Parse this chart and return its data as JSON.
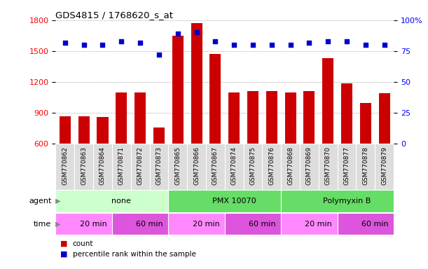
{
  "title": "GDS4815 / 1768620_s_at",
  "samples": [
    "GSM770862",
    "GSM770863",
    "GSM770864",
    "GSM770871",
    "GSM770872",
    "GSM770873",
    "GSM770865",
    "GSM770866",
    "GSM770867",
    "GSM770874",
    "GSM770875",
    "GSM770876",
    "GSM770868",
    "GSM770869",
    "GSM770870",
    "GSM770877",
    "GSM770878",
    "GSM770879"
  ],
  "counts": [
    870,
    870,
    860,
    1100,
    1100,
    760,
    1650,
    1770,
    1470,
    1100,
    1110,
    1110,
    1100,
    1110,
    1430,
    1185,
    1000,
    1090
  ],
  "percentiles": [
    82,
    80,
    80,
    83,
    82,
    72,
    89,
    90,
    83,
    80,
    80,
    80,
    80,
    82,
    83,
    83,
    80,
    80
  ],
  "ylim_left": [
    600,
    1800
  ],
  "ylim_right": [
    0,
    100
  ],
  "yticks_left": [
    600,
    900,
    1200,
    1500,
    1800
  ],
  "yticks_right": [
    0,
    25,
    50,
    75,
    100
  ],
  "bar_color": "#cc0000",
  "dot_color": "#0000cc",
  "agent_groups": [
    {
      "label": "none",
      "start": 0,
      "end": 6,
      "color": "#ccffcc"
    },
    {
      "label": "PMX 10070",
      "start": 6,
      "end": 12,
      "color": "#66dd66"
    },
    {
      "label": "Polymyxin B",
      "start": 12,
      "end": 18,
      "color": "#66dd66"
    }
  ],
  "time_groups": [
    {
      "label": "20 min",
      "start": 0,
      "end": 3,
      "color": "#ff88ff"
    },
    {
      "label": "60 min",
      "start": 3,
      "end": 6,
      "color": "#dd55dd"
    },
    {
      "label": "20 min",
      "start": 6,
      "end": 9,
      "color": "#ff88ff"
    },
    {
      "label": "60 min",
      "start": 9,
      "end": 12,
      "color": "#dd55dd"
    },
    {
      "label": "20 min",
      "start": 12,
      "end": 15,
      "color": "#ff88ff"
    },
    {
      "label": "60 min",
      "start": 15,
      "end": 18,
      "color": "#dd55dd"
    }
  ],
  "legend_count_color": "#cc0000",
  "legend_dot_color": "#0000cc",
  "background_color": "#ffffff",
  "grid_color": "#888888",
  "xticklabel_bg": "#dddddd"
}
